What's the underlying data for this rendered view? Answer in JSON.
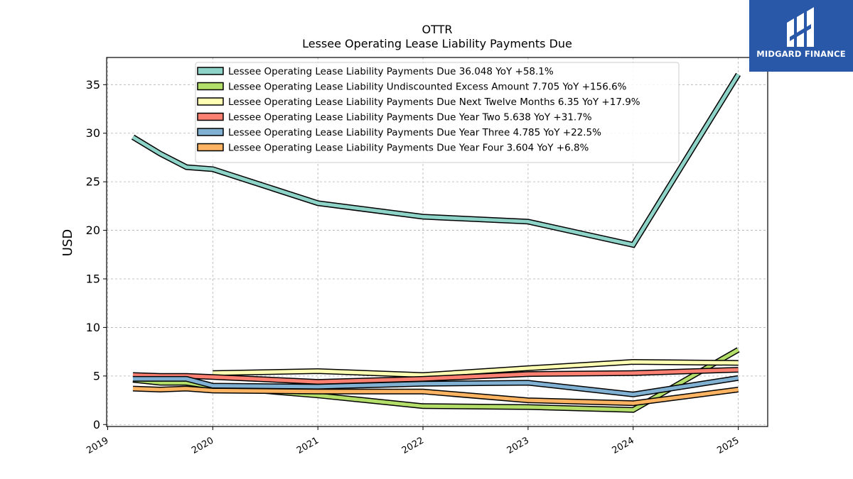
{
  "chart_data": {
    "type": "line",
    "title": "OTTR",
    "subtitle": "Lessee Operating Lease Liability Payments Due",
    "ylabel": "USD",
    "xlim": [
      2018.99,
      2025.28
    ],
    "ylim": [
      -0.2,
      37.8
    ],
    "yticks": [
      0,
      5,
      10,
      15,
      20,
      25,
      30,
      35
    ],
    "xticks": [
      "2019",
      "2020",
      "2021",
      "2022",
      "2023",
      "2024",
      "2025"
    ],
    "grid": true,
    "legend_position": "top-center",
    "series": [
      {
        "name": "Lessee Operating Lease Liability Payments Due",
        "legend": "Lessee Operating Lease Liability Payments Due  36.048 YoY +58.1%",
        "color": "#8dd3c7",
        "x": [
          2019.24,
          2019.5,
          2019.75,
          2020.0,
          2021.0,
          2022.0,
          2023.0,
          2024.0,
          2025.0
        ],
        "y": [
          29.6,
          27.9,
          26.5,
          26.3,
          22.8,
          21.4,
          20.9,
          18.5,
          36.05
        ]
      },
      {
        "name": "Lessee Operating Lease Liability Undiscounted Excess Amount",
        "legend": "Lessee Operating Lease Liability Undiscounted Excess Amount  7.705 YoY +156.6%",
        "color": "#b3de69",
        "x": [
          2019.24,
          2019.5,
          2019.75,
          2020.0,
          2021.0,
          2022.0,
          2023.0,
          2024.0,
          2025.0
        ],
        "y": [
          4.6,
          4.3,
          4.3,
          3.9,
          3.0,
          1.9,
          1.8,
          1.5,
          7.7
        ]
      },
      {
        "name": "Lessee Operating Lease Liability Payments Due Next Twelve Months",
        "legend": "Lessee Operating Lease Liability Payments Due Next Twelve Months  6.35 YoY +17.9%",
        "color": "#ffffb3",
        "x": [
          2020.0,
          2021.0,
          2022.0,
          2023.0,
          2024.0,
          2025.0
        ],
        "y": [
          5.3,
          5.5,
          5.1,
          5.8,
          6.45,
          6.35
        ]
      },
      {
        "name": "Lessee Operating Lease Liability Payments Due Year Two",
        "legend": "Lessee Operating Lease Liability Payments Due Year Two  5.638 YoY +31.7%",
        "color": "#fb8072",
        "x": [
          2019.24,
          2019.5,
          2019.75,
          2020.0,
          2021.0,
          2022.0,
          2023.0,
          2024.0,
          2025.0
        ],
        "y": [
          5.1,
          5.0,
          5.0,
          4.9,
          4.4,
          4.7,
          5.2,
          5.3,
          5.64
        ]
      },
      {
        "name": "Lessee Operating Lease Liability Payments Due Year Three",
        "legend": "Lessee Operating Lease Liability Payments Due Year Three  4.785 YoY +22.5%",
        "color": "#80b1d3",
        "x": [
          2019.24,
          2019.5,
          2019.75,
          2020.0,
          2021.0,
          2022.0,
          2023.0,
          2024.0,
          2025.0
        ],
        "y": [
          4.7,
          4.7,
          4.7,
          4.0,
          3.9,
          4.2,
          4.3,
          3.1,
          4.79
        ]
      },
      {
        "name": "Lessee Operating Lease Liability Payments Due Year Four",
        "legend": "Lessee Operating Lease Liability Payments Due Year Four  3.604 YoY +6.8%",
        "color": "#fdb462",
        "x": [
          2019.24,
          2019.5,
          2019.75,
          2020.0,
          2021.0,
          2022.0,
          2023.0,
          2024.0,
          2025.0
        ],
        "y": [
          3.7,
          3.6,
          3.7,
          3.5,
          3.4,
          3.4,
          2.5,
          2.2,
          3.6
        ]
      }
    ]
  },
  "logo": {
    "text": "MIDGARD FINANCE",
    "background": "#2a58a8"
  }
}
